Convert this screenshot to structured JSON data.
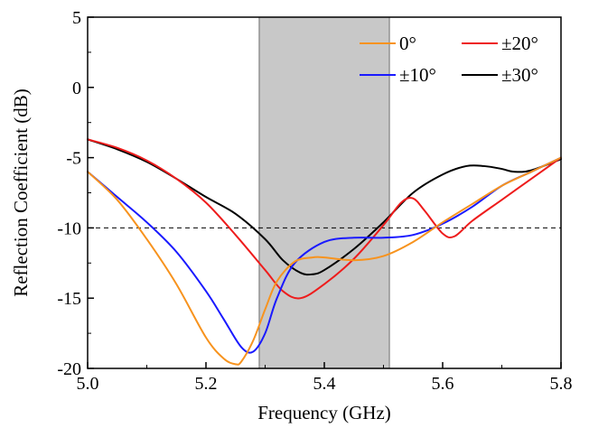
{
  "chart_data": {
    "type": "line",
    "xlabel": "Frequency (GHz)",
    "ylabel": "Reflection Coefficient (dB)",
    "xlim": [
      5.0,
      5.8
    ],
    "ylim": [
      -20,
      5
    ],
    "xticks": [
      "5.0",
      "5.2",
      "5.4",
      "5.6",
      "5.8"
    ],
    "yticks": [
      "5",
      "0",
      "-5",
      "-10",
      "-15",
      "-20"
    ],
    "grid": false,
    "legend_position": "top-right",
    "reference_line": {
      "y": -10,
      "style": "dashed",
      "color": "#000000"
    },
    "shaded_band": {
      "x_start": 5.29,
      "x_end": 5.51,
      "color": "#c8c8c8"
    },
    "series": [
      {
        "name": "0°",
        "color": "#f7931e",
        "x": [
          5.0,
          5.05,
          5.1,
          5.15,
          5.2,
          5.23,
          5.25,
          5.26,
          5.28,
          5.3,
          5.32,
          5.35,
          5.38,
          5.4,
          5.45,
          5.5,
          5.55,
          5.6,
          5.65,
          5.7,
          5.75,
          5.8
        ],
        "y": [
          -6.0,
          -8.0,
          -10.8,
          -14.0,
          -17.8,
          -19.3,
          -19.7,
          -19.5,
          -18.0,
          -15.8,
          -13.8,
          -12.4,
          -12.1,
          -12.1,
          -12.3,
          -12.0,
          -11.0,
          -9.6,
          -8.3,
          -7.0,
          -6.0,
          -5.0
        ]
      },
      {
        "name": "±10°",
        "color": "#1a1aff",
        "x": [
          5.0,
          5.05,
          5.1,
          5.15,
          5.2,
          5.23,
          5.26,
          5.28,
          5.3,
          5.32,
          5.35,
          5.4,
          5.45,
          5.5,
          5.55,
          5.6,
          5.65,
          5.7,
          5.75,
          5.8
        ],
        "y": [
          -6.0,
          -7.8,
          -9.6,
          -11.7,
          -14.5,
          -16.5,
          -18.5,
          -18.8,
          -17.5,
          -15.0,
          -12.5,
          -11.0,
          -10.7,
          -10.7,
          -10.5,
          -9.7,
          -8.5,
          -7.0,
          -6.0,
          -5.0
        ]
      },
      {
        "name": "±20°",
        "color": "#ee1c1c",
        "x": [
          5.0,
          5.05,
          5.1,
          5.15,
          5.2,
          5.25,
          5.3,
          5.33,
          5.36,
          5.4,
          5.45,
          5.5,
          5.53,
          5.55,
          5.57,
          5.6,
          5.62,
          5.65,
          5.7,
          5.75,
          5.8
        ],
        "y": [
          -3.7,
          -4.3,
          -5.2,
          -6.5,
          -8.2,
          -10.5,
          -13.0,
          -14.5,
          -15.0,
          -14.0,
          -12.2,
          -9.8,
          -8.2,
          -7.9,
          -8.8,
          -10.4,
          -10.6,
          -9.5,
          -8.0,
          -6.5,
          -5.0
        ]
      },
      {
        "name": "±30°",
        "color": "#000000",
        "x": [
          5.0,
          5.05,
          5.1,
          5.15,
          5.2,
          5.25,
          5.3,
          5.33,
          5.36,
          5.38,
          5.4,
          5.45,
          5.5,
          5.55,
          5.6,
          5.64,
          5.67,
          5.7,
          5.72,
          5.75,
          5.8
        ],
        "y": [
          -3.7,
          -4.4,
          -5.3,
          -6.5,
          -7.8,
          -9.0,
          -10.8,
          -12.3,
          -13.2,
          -13.3,
          -13.0,
          -11.5,
          -9.6,
          -7.5,
          -6.2,
          -5.6,
          -5.6,
          -5.8,
          -6.0,
          -5.9,
          -5.1
        ]
      }
    ],
    "legend_rows": [
      [
        "0°",
        "±20°"
      ],
      [
        "±10°",
        "±30°"
      ]
    ]
  }
}
